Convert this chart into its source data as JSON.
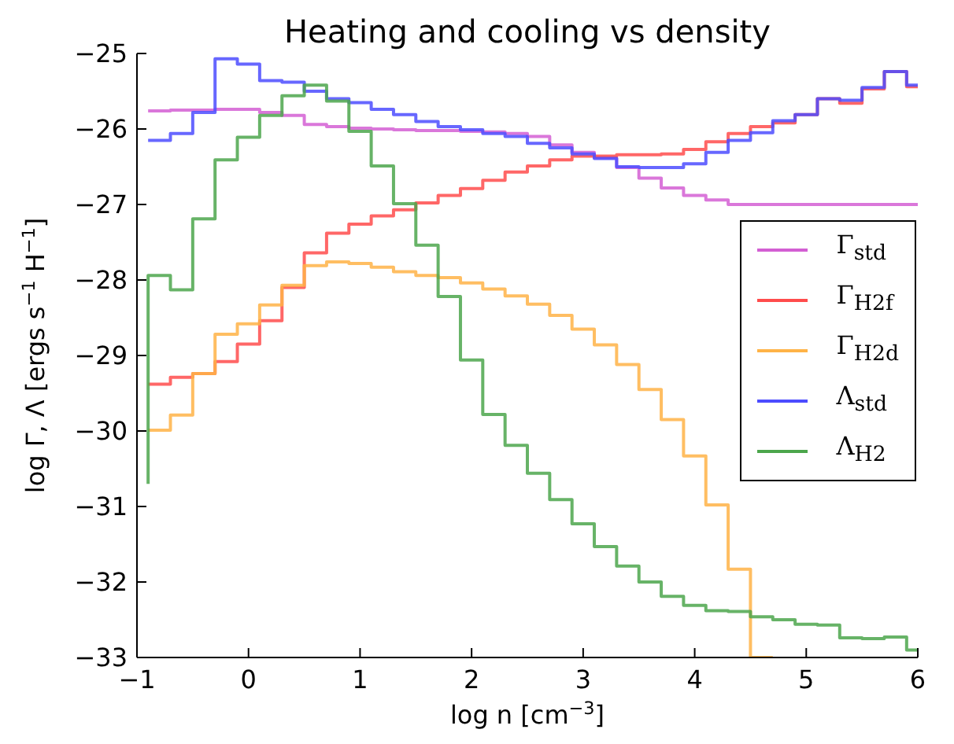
{
  "chart_data": {
    "type": "step",
    "title": "Heating and cooling vs density",
    "xlabel": "log n [cm$^{−3}$]",
    "ylabel": "log Γ, Λ [ergs s$^{−1}$ H$^{−1}$]",
    "x": [
      -0.9,
      -0.7,
      -0.5,
      -0.3,
      -0.1,
      0.1,
      0.3,
      0.5,
      0.7,
      0.9,
      1.1,
      1.3,
      1.5,
      1.7,
      1.9,
      2.1,
      2.3,
      2.5,
      2.7,
      2.9,
      3.1,
      3.3,
      3.5,
      3.7,
      3.9,
      4.1,
      4.3,
      4.5,
      4.7,
      4.9,
      5.1,
      5.3,
      5.5,
      5.7,
      5.9,
      6.0
    ],
    "series": [
      {
        "name": "Γ$_{std}$",
        "color": "#d35fd3",
        "values": [
          -25.76,
          -25.76,
          -25.75,
          -25.75,
          -25.74,
          -25.74,
          -25.78,
          -25.82,
          -25.94,
          -25.97,
          -25.99,
          -26.0,
          -26.01,
          -26.02,
          -26.02,
          -26.03,
          -26.04,
          -26.06,
          -26.1,
          -26.21,
          -26.31,
          -26.38,
          -26.51,
          -26.65,
          -26.78,
          -26.88,
          -26.94,
          -27,
          -27,
          -27,
          -27,
          -27,
          -27,
          -27,
          -27,
          -27
        ]
      },
      {
        "name": "Γ$_{H2}$$_{f}$",
        "color": "#ff4c4c",
        "values": [
          -29.38,
          -29.38,
          -29.29,
          -29.24,
          -29.08,
          -28.85,
          -28.54,
          -28.1,
          -27.64,
          -27.38,
          -27.26,
          -27.15,
          -27.07,
          -26.98,
          -26.88,
          -26.79,
          -26.68,
          -26.57,
          -26.49,
          -26.41,
          -26.36,
          -26.36,
          -26.34,
          -26.34,
          -26.33,
          -26.27,
          -26.17,
          -26.06,
          -25.97,
          -25.92,
          -25.81,
          -25.6,
          -25.66,
          -25.47,
          -25.24,
          -25.44
        ]
      },
      {
        "name": "Γ$_{H2}$$_{d}$",
        "color": "#ffb347",
        "values": [
          -29.99,
          -29.99,
          -29.79,
          -29.24,
          -28.72,
          -28.58,
          -28.33,
          -28.07,
          -27.81,
          -27.76,
          -27.78,
          -27.83,
          -27.89,
          -27.94,
          -27.97,
          -28.04,
          -28.12,
          -28.21,
          -28.32,
          -28.47,
          -28.65,
          -28.86,
          -29.12,
          -29.45,
          -29.85,
          -30.33,
          -30.98,
          -31.83,
          -33,
          null,
          null,
          null,
          null,
          null,
          null,
          null
        ]
      },
      {
        "name": "Λ$_{std}$",
        "color": "#4c4cff",
        "values": [
          -26.15,
          -26.15,
          -26.06,
          -25.78,
          -25.07,
          -25.14,
          -25.36,
          -25.38,
          -25.5,
          -25.6,
          -25.65,
          -25.74,
          -25.81,
          -25.9,
          -25.97,
          -26.01,
          -26.06,
          -26.1,
          -26.19,
          -26.25,
          -26.33,
          -26.39,
          -26.5,
          -26.51,
          -26.51,
          -26.46,
          -26.31,
          -26.15,
          -26.05,
          -25.89,
          -25.81,
          -25.6,
          -25.62,
          -25.45,
          -25.24,
          -25.42
        ]
      },
      {
        "name": "Λ$_{H2}$",
        "color": "#4ca64c",
        "values": [
          -30.7,
          -27.94,
          -28.13,
          -27.19,
          -26.41,
          -26.11,
          -25.82,
          -25.56,
          -25.42,
          -25.63,
          -26.03,
          -26.49,
          -26.99,
          -27.54,
          -28.22,
          -29.06,
          -29.78,
          -30.19,
          -30.56,
          -30.91,
          -31.23,
          -31.53,
          -31.79,
          -32.0,
          -32.19,
          -32.31,
          -32.38,
          -32.39,
          -32.46,
          -32.5,
          -32.56,
          -32.57,
          -32.74,
          -32.75,
          -32.73,
          -32.9
        ]
      }
    ],
    "xlim": [
      -1,
      6
    ],
    "xticks": [
      -1,
      0,
      1,
      2,
      3,
      4,
      5,
      6
    ],
    "ylim": [
      -33,
      -25
    ],
    "yticks": [
      -33,
      -32,
      -31,
      -30,
      -29,
      -28,
      -27,
      -26,
      -25
    ],
    "legend": "right",
    "grid": false,
    "marker": "none",
    "line_style": "solid"
  }
}
